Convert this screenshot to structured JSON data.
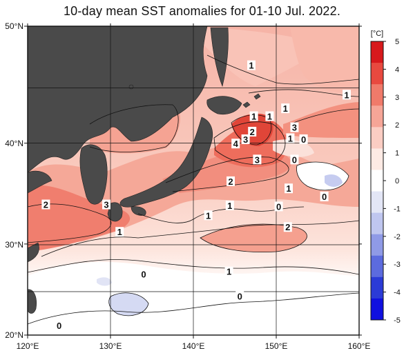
{
  "title": "10-day mean SST anomalies for 01-10 Jul. 2022.",
  "lat_labels": [
    "50°N",
    "40°N",
    "30°N",
    "20°N"
  ],
  "lon_labels": [
    "120°E",
    "130°E",
    "140°E",
    "150°E",
    "160°E"
  ],
  "colorbar": {
    "unit": "[°C]",
    "ticks": [
      "5",
      "4",
      "3",
      "2",
      "1",
      "0",
      "-1",
      "-2",
      "-3",
      "-4",
      "-5"
    ],
    "colors": [
      "#d7191c",
      "#e8493f",
      "#f07a6a",
      "#f6a597",
      "#fbcdc3",
      "#fdeae4",
      "#ffffff",
      "#e3e6f6",
      "#bfc6ef",
      "#8f9ae6",
      "#5c6bde",
      "#2b3bd6",
      "#1010e0"
    ]
  },
  "colors": {
    "land": "#4a4a4a",
    "contour": "#111111"
  },
  "contour_labels": [
    {
      "text": "1",
      "lon": 147.0,
      "lat": 46.8
    },
    {
      "text": "1",
      "lon": 158.5,
      "lat": 44.3
    },
    {
      "text": "1",
      "lon": 147.3,
      "lat": 42.4
    },
    {
      "text": "1",
      "lon": 149.2,
      "lat": 42.4
    },
    {
      "text": "1",
      "lon": 151.1,
      "lat": 43.1
    },
    {
      "text": "3",
      "lon": 152.2,
      "lat": 41.4
    },
    {
      "text": "2",
      "lon": 147.1,
      "lat": 41.0
    },
    {
      "text": "3",
      "lon": 146.3,
      "lat": 40.3
    },
    {
      "text": "4",
      "lon": 145.1,
      "lat": 39.9
    },
    {
      "text": "1",
      "lon": 151.7,
      "lat": 40.4
    },
    {
      "text": "0",
      "lon": 153.3,
      "lat": 40.3
    },
    {
      "text": "3",
      "lon": 147.7,
      "lat": 38.4
    },
    {
      "text": "0",
      "lon": 152.2,
      "lat": 38.4
    },
    {
      "text": "2",
      "lon": 144.5,
      "lat": 36.3
    },
    {
      "text": "1",
      "lon": 151.5,
      "lat": 35.6
    },
    {
      "text": "0",
      "lon": 155.8,
      "lat": 34.8
    },
    {
      "text": "2",
      "lon": 122.2,
      "lat": 34.0
    },
    {
      "text": "3",
      "lon": 129.5,
      "lat": 34.0
    },
    {
      "text": "1",
      "lon": 144.4,
      "lat": 33.9
    },
    {
      "text": "0",
      "lon": 150.3,
      "lat": 33.8
    },
    {
      "text": "1",
      "lon": 141.8,
      "lat": 32.9
    },
    {
      "text": "2",
      "lon": 151.4,
      "lat": 31.7
    },
    {
      "text": "1",
      "lon": 131.1,
      "lat": 31.2
    },
    {
      "text": "1",
      "lon": 144.3,
      "lat": 27.0
    },
    {
      "text": "0",
      "lon": 134.0,
      "lat": 26.7
    },
    {
      "text": "0",
      "lon": 145.6,
      "lat": 24.3
    },
    {
      "text": "0",
      "lon": 123.8,
      "lat": 21.0
    }
  ]
}
